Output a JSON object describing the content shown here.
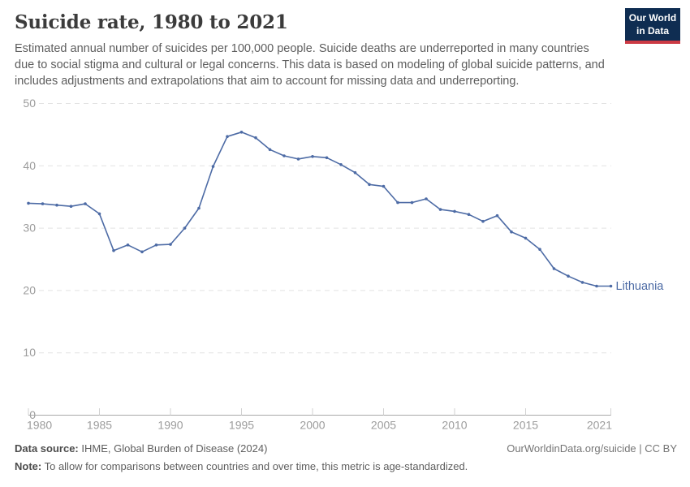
{
  "header": {
    "title": "Suicide rate, 1980 to 2021",
    "subtitle": "Estimated annual number of suicides per 100,000 people. Suicide deaths are underreported in many countries due to social stigma and cultural or legal concerns. This data is based on modeling of global suicide patterns, and includes adjustments and extrapolations that aim to account for missing data and underreporting.",
    "logo": {
      "line1": "Our World",
      "line2": "in Data",
      "bg_color": "#0f2d52",
      "bar_color": "#cc3a44"
    }
  },
  "chart_data": {
    "type": "line",
    "title": "Suicide rate, 1980 to 2021",
    "xlabel": "",
    "ylabel": "Suicides per 100,000 people",
    "xlim": [
      1980,
      2021
    ],
    "ylim": [
      0,
      50
    ],
    "x_ticks": [
      1980,
      1985,
      1990,
      1995,
      2000,
      2005,
      2010,
      2015,
      2021
    ],
    "y_ticks": [
      0,
      10,
      20,
      30,
      40,
      50
    ],
    "grid": "horizontal-dashed",
    "legend_position": "end-of-line-label",
    "series": [
      {
        "name": "Lithuania",
        "color": "#4d6ba5",
        "x": [
          1980,
          1981,
          1982,
          1983,
          1984,
          1985,
          1986,
          1987,
          1988,
          1989,
          1990,
          1991,
          1992,
          1993,
          1994,
          1995,
          1996,
          1997,
          1998,
          1999,
          2000,
          2001,
          2002,
          2003,
          2004,
          2005,
          2006,
          2007,
          2008,
          2009,
          2010,
          2011,
          2012,
          2013,
          2014,
          2015,
          2016,
          2017,
          2018,
          2019,
          2020,
          2021
        ],
        "values": [
          34.0,
          33.9,
          33.7,
          33.5,
          33.9,
          32.3,
          26.4,
          27.3,
          26.2,
          27.3,
          27.4,
          30.0,
          33.2,
          39.9,
          44.7,
          45.4,
          44.5,
          42.6,
          41.6,
          41.1,
          41.5,
          41.3,
          40.2,
          38.9,
          37.0,
          36.7,
          34.1,
          34.1,
          34.7,
          33.0,
          32.7,
          32.2,
          31.1,
          32.0,
          29.4,
          28.4,
          26.6,
          23.5,
          22.3,
          21.3,
          20.7,
          20.7
        ]
      }
    ],
    "colors": {
      "gridline": "#e3e3e3",
      "axis": "#a9a9a9",
      "tick": "#d2d2d2",
      "tick_label": "#9c9c9c",
      "line": "#4d6ba5"
    }
  },
  "footer": {
    "source_label": "Data source:",
    "source_text": " IHME, Global Burden of Disease (2024)",
    "rights": "OurWorldinData.org/suicide | CC BY",
    "note_label": "Note:",
    "note_text": " To allow for comparisons between countries and over time, this metric is age-standardized."
  }
}
